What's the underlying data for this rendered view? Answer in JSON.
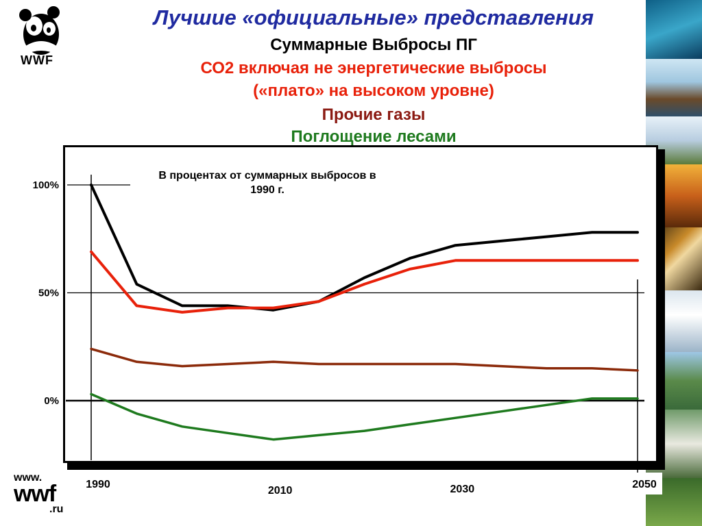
{
  "header": {
    "title": "Лучшие «официальные» представления",
    "subtitle": "Суммарные Выбросы ПГ",
    "line_co2_a": "СО2 включая не энергетические выбросы",
    "line_co2_b": "(«плато» на высоком уровне)",
    "line_other": "Прочие газы",
    "line_forest": "Поглощение лесами"
  },
  "logo": {
    "top": "WWF",
    "bottom_a": "www.",
    "bottom_b": "wwf",
    "bottom_c": ".ru"
  },
  "colors": {
    "title": "#1f2aa0",
    "total": "#000000",
    "co2": "#e8210a",
    "other": "#8b2a0a",
    "forest": "#1e7a1e"
  },
  "chart_data": {
    "type": "line",
    "annotation": "В процентах от суммарных выбросов в 1990 г.",
    "x": [
      1990,
      1995,
      2000,
      2005,
      2010,
      2015,
      2020,
      2025,
      2030,
      2035,
      2040,
      2045,
      2050
    ],
    "x_ticks": [
      {
        "value": 1990,
        "label": "1990"
      },
      {
        "value": 2010,
        "label": "2010"
      },
      {
        "value": 2030,
        "label": "2030"
      },
      {
        "value": 2050,
        "label": "2050"
      }
    ],
    "y_ticks": [
      {
        "value": 100,
        "label": "100%"
      },
      {
        "value": 50,
        "label": "50%"
      },
      {
        "value": 0,
        "label": "0%"
      }
    ],
    "ylim": [
      -27,
      110
    ],
    "xlim": [
      1990,
      2050
    ],
    "series": [
      {
        "key": "total",
        "values": [
          100,
          54,
          44,
          44,
          42,
          46,
          57,
          66,
          72,
          74,
          76,
          78,
          78
        ]
      },
      {
        "key": "co2",
        "values": [
          69,
          44,
          41,
          43,
          43,
          46,
          54,
          61,
          65,
          65,
          65,
          65,
          65
        ]
      },
      {
        "key": "other",
        "values": [
          24,
          18,
          16,
          17,
          18,
          17,
          17,
          17,
          17,
          16,
          15,
          15,
          14
        ]
      },
      {
        "key": "forest",
        "values": [
          3,
          -6,
          -12,
          -15,
          -18,
          -16,
          -14,
          -11,
          -8,
          -5,
          -2,
          1,
          1
        ]
      }
    ]
  }
}
